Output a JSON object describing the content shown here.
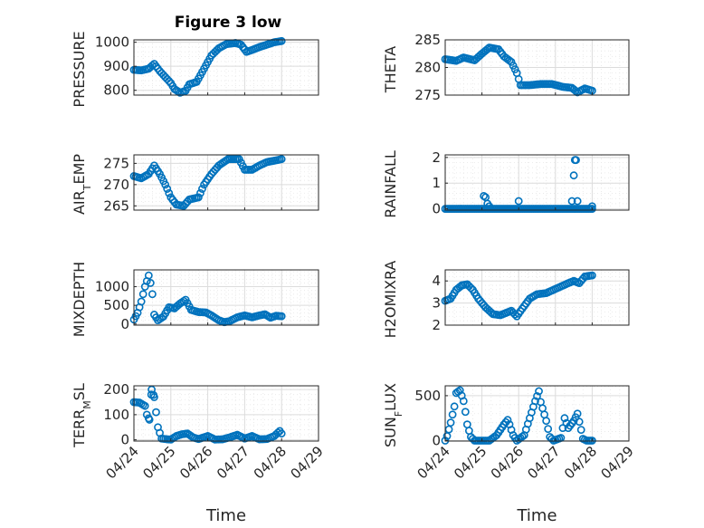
{
  "figure": {
    "title": "Figure 3 low",
    "marker_color": "#0072BD",
    "x_tick_labels": [
      "04/24",
      "04/25",
      "04/26",
      "04/27",
      "04/28",
      "04/29"
    ]
  },
  "chart_data": [
    {
      "type": "scatter",
      "title": "Figure 3 low",
      "ylabel": "PRESSURE",
      "xlabel": "",
      "x_unit": "days since 04/24",
      "xlim": [
        0,
        5
      ],
      "ylim": [
        780,
        1010
      ],
      "yticks": [
        800,
        900,
        1000
      ],
      "grid": true,
      "key": [
        [
          0,
          885
        ],
        [
          0.2,
          883
        ],
        [
          0.4,
          890
        ],
        [
          0.55,
          910
        ],
        [
          0.7,
          880
        ],
        [
          0.85,
          855
        ],
        [
          1.0,
          830
        ],
        [
          1.1,
          805
        ],
        [
          1.25,
          790
        ],
        [
          1.4,
          798
        ],
        [
          1.5,
          825
        ],
        [
          1.7,
          835
        ],
        [
          1.9,
          890
        ],
        [
          2.1,
          945
        ],
        [
          2.3,
          975
        ],
        [
          2.5,
          992
        ],
        [
          2.75,
          997
        ],
        [
          2.9,
          990
        ],
        [
          3.05,
          960
        ],
        [
          3.2,
          968
        ],
        [
          3.4,
          980
        ],
        [
          3.6,
          990
        ],
        [
          3.8,
          1000
        ],
        [
          4.0,
          1005
        ]
      ]
    },
    {
      "type": "scatter",
      "ylabel": "THETA",
      "xlabel": "",
      "xlim": [
        0,
        5
      ],
      "ylim": [
        275,
        285
      ],
      "yticks": [
        275,
        280,
        285
      ],
      "grid": true,
      "key": [
        [
          0,
          281.5
        ],
        [
          0.3,
          281.2
        ],
        [
          0.5,
          281.8
        ],
        [
          0.8,
          281.3
        ],
        [
          1.0,
          282.5
        ],
        [
          1.2,
          283.6
        ],
        [
          1.45,
          283.3
        ],
        [
          1.6,
          282.0
        ],
        [
          1.8,
          281.0
        ],
        [
          1.95,
          279.0
        ],
        [
          2.05,
          276.8
        ],
        [
          2.3,
          276.8
        ],
        [
          2.6,
          277.0
        ],
        [
          2.9,
          277.0
        ],
        [
          3.2,
          276.5
        ],
        [
          3.45,
          276.3
        ],
        [
          3.6,
          275.5
        ],
        [
          3.8,
          276.2
        ],
        [
          4.0,
          275.8
        ]
      ]
    },
    {
      "type": "scatter",
      "ylabel": "AIR_TEMP",
      "xlabel": "",
      "xlim": [
        0,
        5
      ],
      "ylim": [
        264,
        277
      ],
      "yticks": [
        265,
        270,
        275
      ],
      "grid": true,
      "key": [
        [
          0,
          272
        ],
        [
          0.2,
          271.5
        ],
        [
          0.4,
          272.5
        ],
        [
          0.55,
          274.5
        ],
        [
          0.7,
          272.5
        ],
        [
          0.85,
          270
        ],
        [
          1.0,
          267
        ],
        [
          1.15,
          265.3
        ],
        [
          1.35,
          265
        ],
        [
          1.5,
          266.5
        ],
        [
          1.75,
          267
        ],
        [
          1.9,
          270
        ],
        [
          2.1,
          272.5
        ],
        [
          2.3,
          274.5
        ],
        [
          2.55,
          276
        ],
        [
          2.85,
          276
        ],
        [
          3.0,
          273.5
        ],
        [
          3.2,
          273.5
        ],
        [
          3.4,
          274.5
        ],
        [
          3.6,
          275.3
        ],
        [
          3.9,
          275.8
        ],
        [
          4.0,
          276
        ]
      ]
    },
    {
      "type": "scatter",
      "ylabel": "RAINFALL",
      "xlabel": "",
      "xlim": [
        0,
        5
      ],
      "ylim": [
        -0.05,
        2.1
      ],
      "yticks": [
        0,
        1,
        2
      ],
      "grid": true,
      "zero_range": [
        0,
        4.0
      ],
      "spikes": [
        [
          1.05,
          0.5
        ],
        [
          1.1,
          0.45
        ],
        [
          1.15,
          0.2
        ],
        [
          1.2,
          0.1
        ],
        [
          2.0,
          0.3
        ],
        [
          3.45,
          0.3
        ],
        [
          3.5,
          1.3
        ],
        [
          3.53,
          1.9
        ],
        [
          3.56,
          1.9
        ],
        [
          3.6,
          0.3
        ],
        [
          4.0,
          0.1
        ]
      ]
    },
    {
      "type": "scatter",
      "ylabel": "MIXDEPTH",
      "xlabel": "",
      "xlim": [
        0,
        5
      ],
      "ylim": [
        -30,
        1450
      ],
      "yticks": [
        0,
        500,
        1000
      ],
      "grid": true,
      "key": [
        [
          0,
          120
        ],
        [
          0.1,
          300
        ],
        [
          0.2,
          600
        ],
        [
          0.3,
          1000
        ],
        [
          0.4,
          1300
        ],
        [
          0.45,
          1100
        ],
        [
          0.5,
          800
        ],
        [
          0.55,
          250
        ],
        [
          0.65,
          100
        ],
        [
          0.8,
          200
        ],
        [
          0.95,
          450
        ],
        [
          1.1,
          420
        ],
        [
          1.25,
          550
        ],
        [
          1.4,
          650
        ],
        [
          1.55,
          380
        ],
        [
          1.75,
          320
        ],
        [
          1.95,
          310
        ],
        [
          2.1,
          230
        ],
        [
          2.3,
          100
        ],
        [
          2.45,
          50
        ],
        [
          2.6,
          80
        ],
        [
          2.8,
          180
        ],
        [
          3.0,
          230
        ],
        [
          3.2,
          180
        ],
        [
          3.4,
          230
        ],
        [
          3.55,
          260
        ],
        [
          3.7,
          170
        ],
        [
          3.85,
          220
        ],
        [
          4.0,
          210
        ]
      ]
    },
    {
      "type": "scatter",
      "ylabel": "H2OMIXRA",
      "xlabel": "",
      "xlim": [
        0,
        5
      ],
      "ylim": [
        2,
        4.5
      ],
      "yticks": [
        2,
        3,
        4
      ],
      "grid": true,
      "key": [
        [
          0,
          3.1
        ],
        [
          0.15,
          3.2
        ],
        [
          0.3,
          3.6
        ],
        [
          0.45,
          3.8
        ],
        [
          0.6,
          3.85
        ],
        [
          0.75,
          3.6
        ],
        [
          0.9,
          3.2
        ],
        [
          1.1,
          2.8
        ],
        [
          1.3,
          2.5
        ],
        [
          1.5,
          2.45
        ],
        [
          1.65,
          2.55
        ],
        [
          1.8,
          2.65
        ],
        [
          1.95,
          2.4
        ],
        [
          2.1,
          2.75
        ],
        [
          2.3,
          3.2
        ],
        [
          2.5,
          3.4
        ],
        [
          2.75,
          3.45
        ],
        [
          2.95,
          3.6
        ],
        [
          3.15,
          3.75
        ],
        [
          3.35,
          3.9
        ],
        [
          3.5,
          4.0
        ],
        [
          3.65,
          3.9
        ],
        [
          3.8,
          4.2
        ],
        [
          4.0,
          4.25
        ]
      ]
    },
    {
      "type": "scatter",
      "ylabel": "TERR_MSL",
      "xlabel": "Time",
      "xlim": [
        0,
        5
      ],
      "ylim": [
        -5,
        215
      ],
      "yticks": [
        0,
        100,
        200
      ],
      "grid": true,
      "key": [
        [
          0,
          150
        ],
        [
          0.15,
          148
        ],
        [
          0.3,
          135
        ],
        [
          0.35,
          100
        ],
        [
          0.42,
          80
        ],
        [
          0.48,
          200
        ],
        [
          0.55,
          170
        ],
        [
          0.65,
          50
        ],
        [
          0.75,
          5
        ],
        [
          0.9,
          2
        ],
        [
          1.0,
          1
        ],
        [
          1.15,
          15
        ],
        [
          1.3,
          22
        ],
        [
          1.45,
          25
        ],
        [
          1.6,
          10
        ],
        [
          1.75,
          3
        ],
        [
          2.0,
          15
        ],
        [
          2.2,
          1
        ],
        [
          2.4,
          2
        ],
        [
          2.6,
          10
        ],
        [
          2.8,
          20
        ],
        [
          3.0,
          5
        ],
        [
          3.2,
          15
        ],
        [
          3.4,
          2
        ],
        [
          3.6,
          3
        ],
        [
          3.8,
          15
        ],
        [
          3.95,
          35
        ],
        [
          4.0,
          25
        ]
      ]
    },
    {
      "type": "scatter",
      "ylabel": "SUN_FLUX",
      "xlabel": "Time",
      "xlim": [
        0,
        5
      ],
      "ylim": [
        -5,
        610
      ],
      "yticks": [
        0,
        500
      ],
      "grid": true,
      "key": [
        [
          0,
          0
        ],
        [
          0.05,
          50
        ],
        [
          0.15,
          200
        ],
        [
          0.25,
          380
        ],
        [
          0.3,
          530
        ],
        [
          0.4,
          560
        ],
        [
          0.5,
          440
        ],
        [
          0.55,
          320
        ],
        [
          0.6,
          180
        ],
        [
          0.7,
          40
        ],
        [
          0.8,
          0
        ],
        [
          1.2,
          0
        ],
        [
          1.4,
          60
        ],
        [
          1.6,
          180
        ],
        [
          1.7,
          230
        ],
        [
          1.75,
          180
        ],
        [
          1.85,
          60
        ],
        [
          1.95,
          0
        ],
        [
          2.15,
          60
        ],
        [
          2.3,
          250
        ],
        [
          2.45,
          440
        ],
        [
          2.55,
          550
        ],
        [
          2.6,
          430
        ],
        [
          2.75,
          220
        ],
        [
          2.85,
          40
        ],
        [
          2.95,
          0
        ],
        [
          3.15,
          30
        ],
        [
          3.25,
          250
        ],
        [
          3.35,
          140
        ],
        [
          3.5,
          220
        ],
        [
          3.6,
          300
        ],
        [
          3.7,
          120
        ],
        [
          3.75,
          20
        ],
        [
          3.85,
          0
        ],
        [
          4.0,
          0
        ]
      ]
    }
  ]
}
